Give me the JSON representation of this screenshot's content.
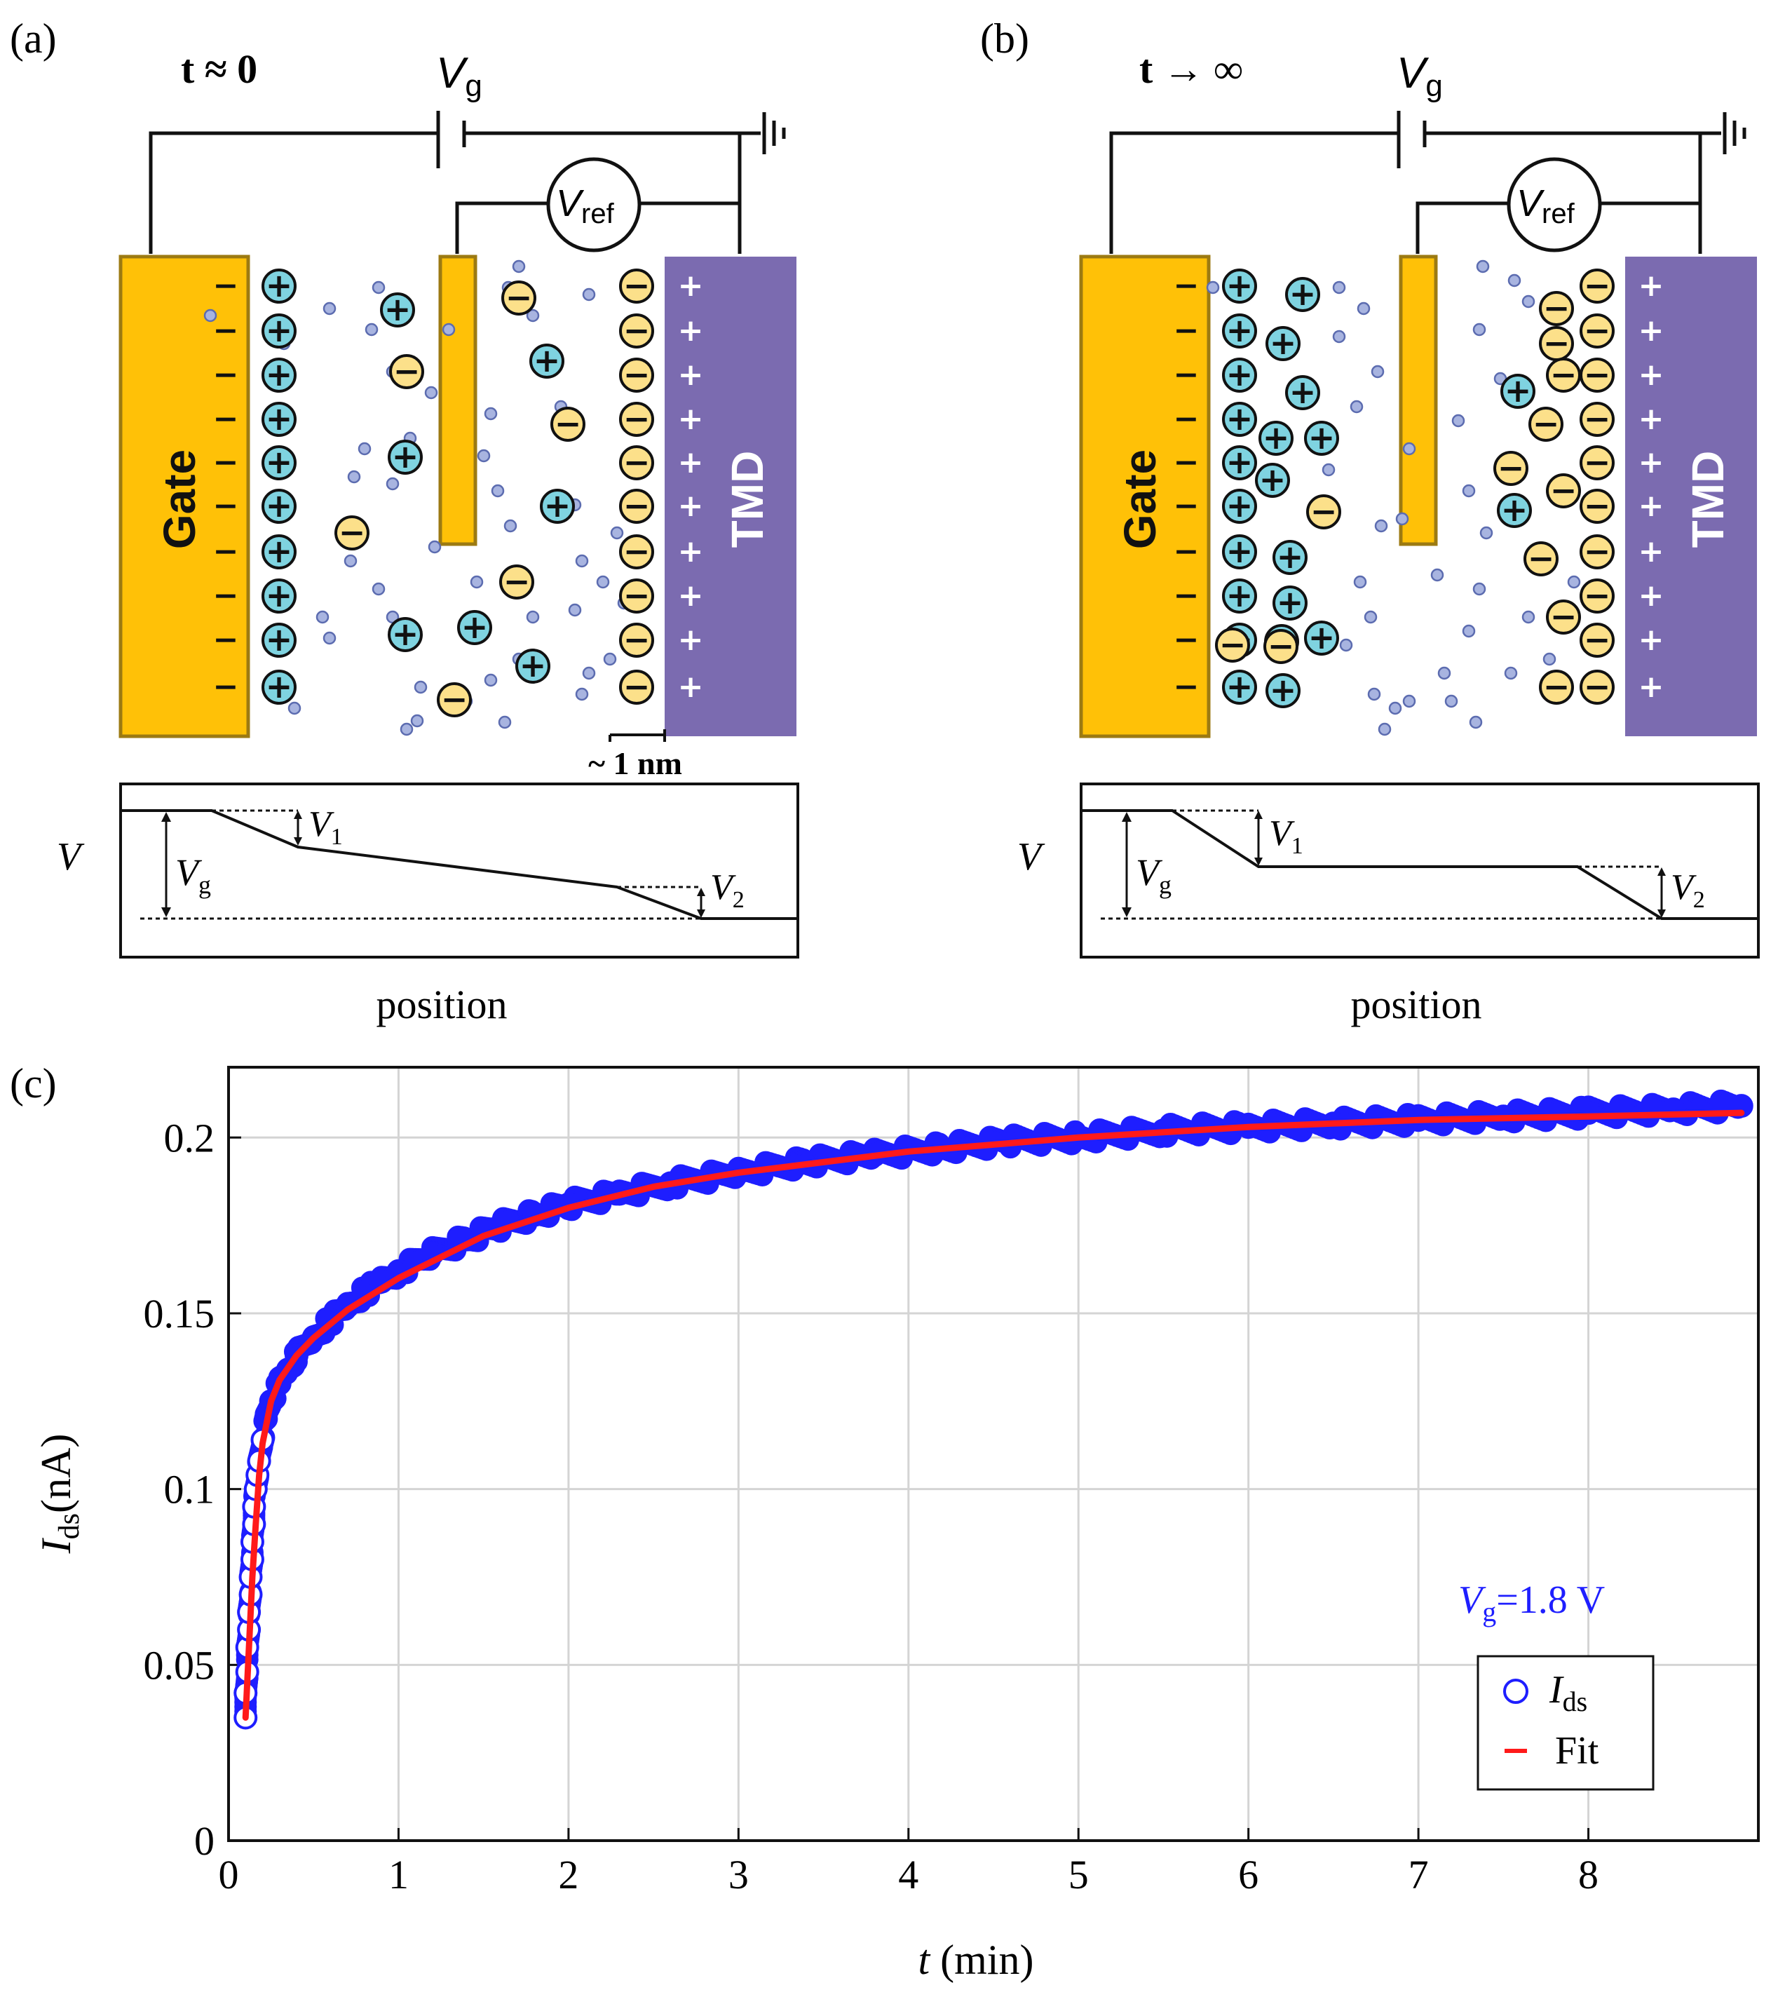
{
  "panel_a": {
    "label": "(a)",
    "time_label": "t ≈ 0",
    "gate_label": "Gate",
    "tmd_label": "TMD",
    "vg_symbol": "V",
    "vg_sub": "g",
    "vref_symbol": "V",
    "vref_sub": "ref",
    "scale_label": "~ 1 nm",
    "profile": {
      "ylabel": "V",
      "xlabel": "position",
      "vg_symbol": "V",
      "vg_sub": "g",
      "v1_symbol": "V",
      "v1_sub": "1",
      "v2_symbol": "V",
      "v2_sub": "2"
    }
  },
  "panel_b": {
    "label": "(b)",
    "time_label": "t → ∞",
    "gate_label": "Gate",
    "tmd_label": "TMD",
    "vg_symbol": "V",
    "vg_sub": "g",
    "vref_symbol": "V",
    "vref_sub": "ref",
    "profile": {
      "ylabel": "V",
      "xlabel": "position",
      "vg_symbol": "V",
      "vg_sub": "g",
      "v1_symbol": "V",
      "v1_sub": "1",
      "v2_symbol": "V",
      "v2_sub": "2"
    }
  },
  "symbols": {
    "plus": "+",
    "minus": "−",
    "gate_minus": "−"
  },
  "colors": {
    "gate": "#FFC107",
    "gate_border": "#9C7A12",
    "tmd": "#7B6BB0",
    "cation": "#7FD3E0",
    "anion": "#FCE08A",
    "solvent": "#A8B4E0",
    "data_marker": "#1E1EFF",
    "fit_line": "#FF1A1A",
    "annotation": "#1E1EFF"
  },
  "panel_c": {
    "label": "(c)",
    "chart_data": {
      "type": "scatter",
      "title": "",
      "xlabel_symbol": "t",
      "xlabel_rest": " (min)",
      "ylabel_symbol": "I",
      "ylabel_sub": "ds",
      "ylabel_rest": "(nA)",
      "xlim": [
        0,
        9
      ],
      "ylim": [
        0,
        0.22
      ],
      "xticks": [
        0,
        1,
        2,
        3,
        4,
        5,
        6,
        7,
        8
      ],
      "xtick_labels": [
        "0",
        "1",
        "2",
        "3",
        "4",
        "5",
        "6",
        "7",
        "8"
      ],
      "yticks": [
        0,
        0.05,
        0.1,
        0.15,
        0.2
      ],
      "ytick_labels": [
        "0",
        "0.05",
        "0.1",
        "0.15",
        "0.2"
      ],
      "grid": true,
      "annotation": {
        "symbol": "V",
        "sub": "g",
        "rest": "=1.8 V"
      },
      "legend": {
        "position": "bottom-right",
        "entries": [
          {
            "symbol": "I",
            "sub": "ds",
            "kind": "marker"
          },
          {
            "label": "Fit",
            "kind": "line"
          }
        ]
      },
      "series": [
        {
          "name": "Ids",
          "kind": "marker",
          "x": [
            0.1,
            0.1,
            0.11,
            0.11,
            0.12,
            0.12,
            0.13,
            0.13,
            0.14,
            0.14,
            0.15,
            0.15,
            0.16,
            0.17,
            0.18,
            0.2,
            0.22,
            0.25,
            0.3,
            0.35,
            0.4,
            0.5,
            0.6,
            0.7,
            0.8,
            0.9,
            1.0,
            1.2,
            1.4,
            1.6,
            1.8,
            2.0,
            2.3,
            2.6,
            3.0,
            3.4,
            3.8,
            4.2,
            4.6,
            5.0,
            5.5,
            6.0,
            6.5,
            7.0,
            7.5,
            8.0,
            8.5,
            8.9
          ],
          "y": [
            0.035,
            0.042,
            0.048,
            0.055,
            0.06,
            0.065,
            0.07,
            0.075,
            0.08,
            0.085,
            0.09,
            0.095,
            0.1,
            0.104,
            0.108,
            0.114,
            0.12,
            0.125,
            0.13,
            0.134,
            0.138,
            0.143,
            0.148,
            0.152,
            0.156,
            0.159,
            0.162,
            0.167,
            0.171,
            0.175,
            0.178,
            0.181,
            0.184,
            0.187,
            0.19,
            0.193,
            0.195,
            0.197,
            0.199,
            0.2,
            0.202,
            0.203,
            0.204,
            0.205,
            0.206,
            0.207,
            0.208,
            0.209
          ]
        },
        {
          "name": "Fit",
          "kind": "line",
          "x": [
            0.1,
            0.12,
            0.14,
            0.16,
            0.18,
            0.2,
            0.25,
            0.3,
            0.4,
            0.5,
            0.7,
            1.0,
            1.5,
            2.0,
            2.5,
            3.0,
            4.0,
            5.0,
            6.0,
            7.0,
            8.0,
            8.9
          ],
          "y": [
            0.035,
            0.055,
            0.075,
            0.09,
            0.104,
            0.113,
            0.125,
            0.131,
            0.138,
            0.143,
            0.151,
            0.16,
            0.172,
            0.18,
            0.186,
            0.19,
            0.196,
            0.2,
            0.203,
            0.205,
            0.206,
            0.207
          ]
        }
      ]
    }
  }
}
